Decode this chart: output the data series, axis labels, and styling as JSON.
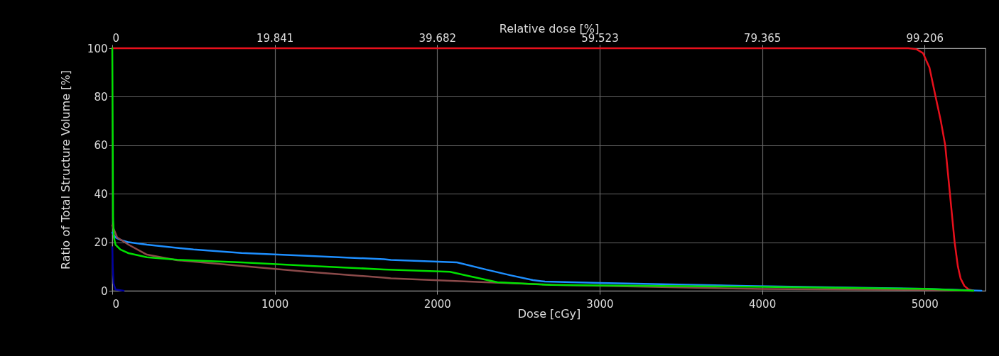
{
  "chart_data": {
    "type": "line",
    "xlabel": "Dose [cGy]",
    "x2label": "Relative dose [%]",
    "ylabel": "Ratio of Total Structure Volume [%]",
    "xlim": [
      0,
      5375
    ],
    "xticks": [
      0,
      1000,
      2000,
      3000,
      4000,
      5000
    ],
    "x2lim": [
      0,
      106.647
    ],
    "x2ticks": [
      0,
      19.841,
      39.682,
      59.523,
      79.365,
      99.206
    ],
    "ylim": [
      0,
      100
    ],
    "yticks": [
      0,
      20,
      40,
      60,
      80,
      100
    ],
    "grid": true,
    "legend": false,
    "line_style": "solid",
    "marker": "none",
    "series": [
      {
        "color": "#e8101c",
        "x": [
          0,
          4900,
          4950,
          4990,
          5030,
          5068,
          5100,
          5127,
          5156,
          5185,
          5205,
          5222,
          5245,
          5270,
          5303
        ],
        "values": [
          100,
          100,
          99.6,
          98,
          92,
          80,
          70,
          60,
          40,
          20,
          10,
          5,
          2,
          0.6,
          0
        ]
      },
      {
        "color": "#1e8fff",
        "x": [
          0,
          20,
          50,
          100,
          213,
          500,
          796,
          1200,
          1671,
          1715,
          2122,
          2297,
          2450,
          2590,
          2663,
          3000,
          3903,
          5000,
          5350
        ],
        "values": [
          24,
          22,
          21,
          20,
          19,
          17,
          15.6,
          14.4,
          13,
          12.7,
          11.7,
          8.8,
          6.4,
          4.4,
          3.8,
          3.2,
          2,
          0.8,
          0
        ]
      },
      {
        "color": "#8b4a4a",
        "x": [
          0,
          30,
          100,
          213,
          400,
          796,
          1200,
          1671,
          1715,
          2297,
          2734,
          4000,
          5000,
          5300
        ],
        "values": [
          27,
          22,
          19,
          14.9,
          12.6,
          10.2,
          7.8,
          5.4,
          5.1,
          3.5,
          2.4,
          0.7,
          0.3,
          0
        ]
      },
      {
        "color": "#00e000",
        "x": [
          0,
          3,
          5,
          10,
          20,
          50,
          100,
          213,
          400,
          796,
          1200,
          1671,
          2078,
          2200,
          2371,
          2700,
          3000,
          4000,
          5000,
          5300
        ],
        "values": [
          100,
          60,
          30,
          22,
          19,
          17,
          15.5,
          13.8,
          12.8,
          11.7,
          10.3,
          8.8,
          7.8,
          6,
          3.5,
          2.4,
          2.2,
          1.6,
          0.8,
          0
        ]
      },
      {
        "color": "#0000a0",
        "x": [
          0,
          3,
          8,
          20,
          70
        ],
        "values": [
          18,
          10,
          3,
          0.5,
          0
        ]
      }
    ]
  }
}
